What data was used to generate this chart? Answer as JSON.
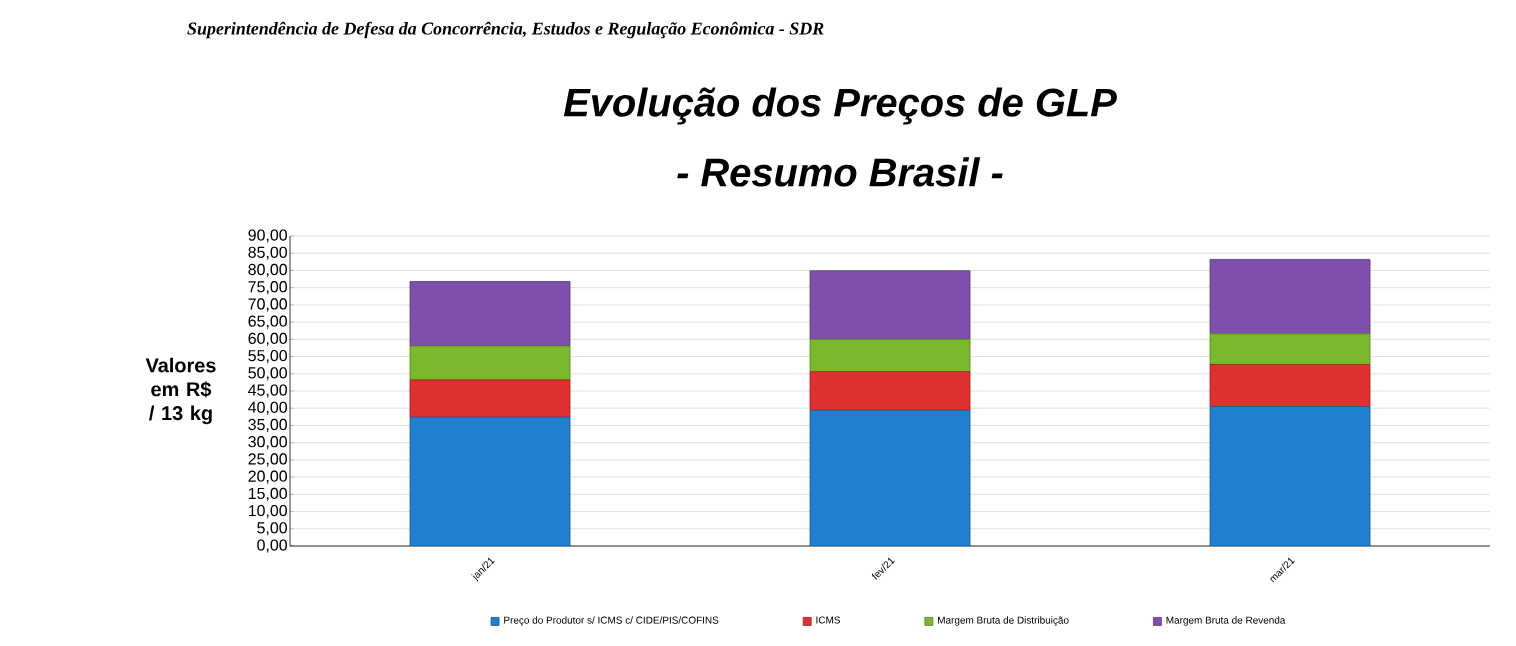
{
  "chart_data": {
    "type": "bar",
    "stacked": true,
    "title": "Evolução dos Preços de GLP",
    "subtitle": "- Resumo Brasil -",
    "ylabel": "Valores em R$ / 13 kg",
    "annotations": [
      "Superintendência de Defesa da Concorrência, Estudos e Regulação Econômica - SDR"
    ],
    "categories": [
      "jan/21",
      "fev/21",
      "mar/21"
    ],
    "series": [
      {
        "name": "Preço do Produtor s/ ICMS c/ CIDE/PIS/COFINS",
        "color": "#1f7fd0",
        "values": [
          37.4,
          39.4,
          40.5
        ]
      },
      {
        "name": "ICMS",
        "color": "#e03030",
        "values": [
          10.8,
          11.2,
          12.2
        ]
      },
      {
        "name": "Margem Bruta de Distribuição",
        "color": "#7ab82c",
        "values": [
          9.9,
          9.4,
          8.9
        ]
      },
      {
        "name": "Margem Bruta de Revenda",
        "color": "#7f4fae",
        "values": [
          18.7,
          19.9,
          21.6
        ]
      }
    ],
    "ylim": [
      0,
      90
    ],
    "yticks": [
      {
        "value": 0,
        "label": "0,00"
      },
      {
        "value": 5,
        "label": "5,00"
      },
      {
        "value": 10,
        "label": "10,00"
      },
      {
        "value": 15,
        "label": "15,00"
      },
      {
        "value": 20,
        "label": "20,00"
      },
      {
        "value": 25,
        "label": "25,00"
      },
      {
        "value": 30,
        "label": "30,00"
      },
      {
        "value": 35,
        "label": "35,00"
      },
      {
        "value": 40,
        "label": "40,00"
      },
      {
        "value": 45,
        "label": "45,00"
      },
      {
        "value": 50,
        "label": "50,00"
      },
      {
        "value": 55,
        "label": "55,00"
      },
      {
        "value": 60,
        "label": "60,00"
      },
      {
        "value": 65,
        "label": "65,00"
      },
      {
        "value": 70,
        "label": "70,00"
      },
      {
        "value": 75,
        "label": "75,00"
      },
      {
        "value": 80,
        "label": "80,00"
      },
      {
        "value": 85,
        "label": "85,00"
      },
      {
        "value": 90,
        "label": "90,00"
      }
    ],
    "grid": "y",
    "legend": "bottom"
  }
}
